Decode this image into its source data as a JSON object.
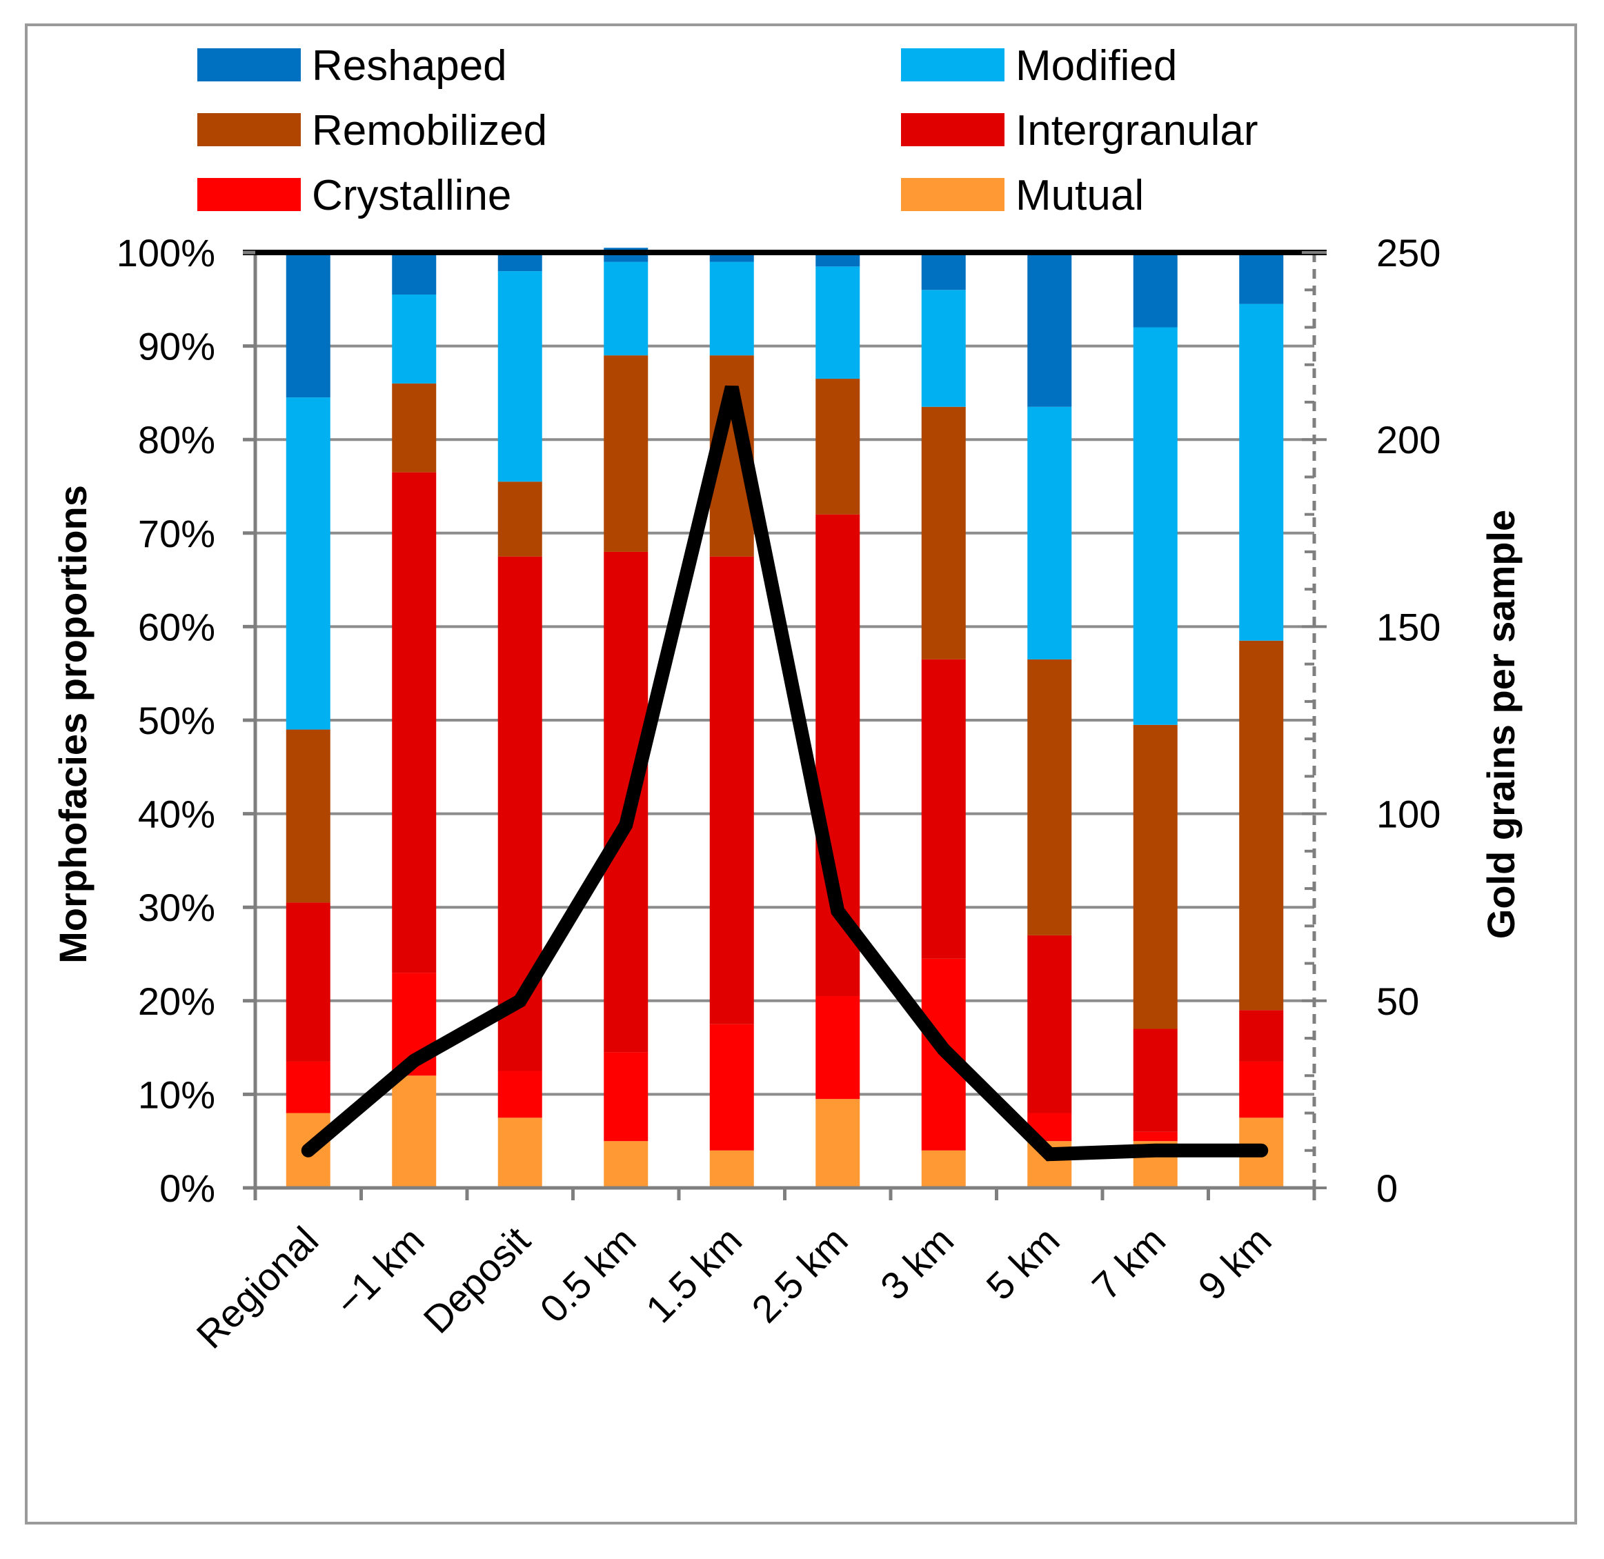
{
  "chart_data": {
    "type": "bar",
    "stacked": true,
    "percent": true,
    "categories": [
      "Regional",
      "−1 km",
      "Deposit",
      "0.5 km",
      "1.5 km",
      "2.5 km",
      "3 km",
      "5 km",
      "7 km",
      "9 km"
    ],
    "series": [
      {
        "name": "Mutual",
        "color": "#FF9933",
        "values": [
          8,
          12,
          7.5,
          5,
          4,
          9.5,
          4,
          5,
          5,
          7.5
        ]
      },
      {
        "name": "Crystalline",
        "color": "#FF0000",
        "values": [
          5.5,
          11,
          5,
          9.5,
          13.5,
          11,
          20.5,
          3,
          1,
          6
        ]
      },
      {
        "name": "Intergranular",
        "color": "#E00000",
        "values": [
          17,
          53.5,
          55,
          53.5,
          50,
          51.5,
          32,
          19,
          11,
          5.5
        ]
      },
      {
        "name": "Remobilized",
        "color": "#B04500",
        "values": [
          18.5,
          9.5,
          8,
          21,
          21.5,
          14.5,
          27,
          29.5,
          32.5,
          39.5
        ]
      },
      {
        "name": "Modified",
        "color": "#00B0F0",
        "values": [
          35.5,
          9.5,
          22.5,
          10,
          10,
          12,
          12.5,
          27,
          42.5,
          36
        ]
      },
      {
        "name": "Reshaped",
        "color": "#0070C0",
        "values": [
          15.5,
          4.5,
          2,
          1.5,
          1,
          1.5,
          4,
          16.5,
          8,
          5.5
        ]
      }
    ],
    "line_series": {
      "name": "Gold grains per sample",
      "axis": "right",
      "color": "#000000",
      "values": [
        10,
        34,
        50,
        97,
        214,
        74,
        37,
        9,
        10,
        10
      ]
    },
    "legend_order": [
      "Reshaped",
      "Modified",
      "Remobilized",
      "Intergranular",
      "Crystalline",
      "Mutual"
    ],
    "legend_position": "top",
    "ylabel": "Morphofacies  proportions",
    "y2label": "Gold grains per sample",
    "ylim": [
      0,
      100
    ],
    "y2lim": [
      0,
      250
    ],
    "yticks": [
      "0%",
      "10%",
      "20%",
      "30%",
      "40%",
      "50%",
      "60%",
      "70%",
      "80%",
      "90%",
      "100%"
    ],
    "y2ticks": [
      "0",
      "50",
      "100",
      "150",
      "200",
      "250"
    ],
    "grid": true
  }
}
